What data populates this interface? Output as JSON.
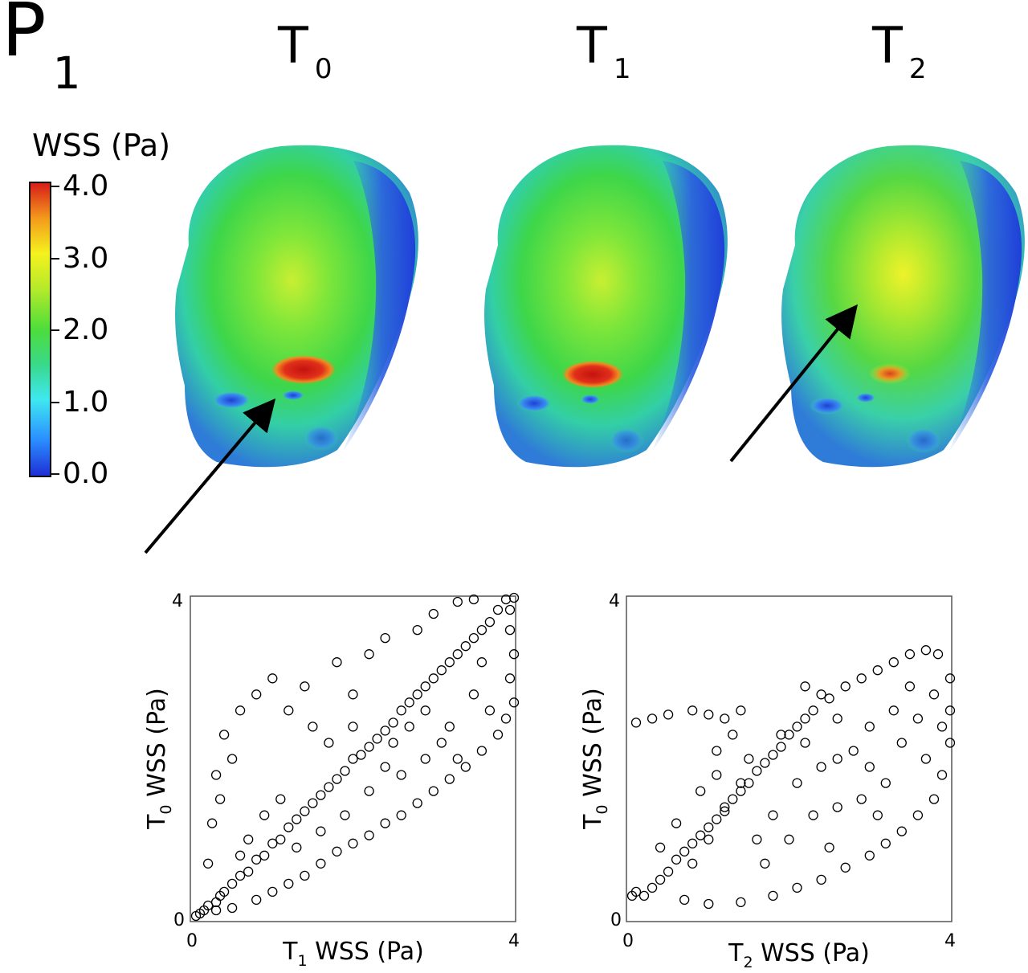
{
  "panel_label": {
    "main": "P",
    "sub": "1"
  },
  "time_labels": [
    {
      "main": "T",
      "sub": "0"
    },
    {
      "main": "T",
      "sub": "1"
    },
    {
      "main": "T",
      "sub": "2"
    }
  ],
  "colorbar": {
    "title": "WSS (Pa)",
    "ticks": [
      "4.0",
      "3.0",
      "2.0",
      "1.0",
      "0.0"
    ],
    "range": [
      0.0,
      4.0
    ]
  },
  "chart_data": [
    {
      "type": "scatter",
      "title": "",
      "xlabel": {
        "main": "T",
        "sub": "1",
        "rest": " WSS (Pa)"
      },
      "ylabel": {
        "main": "T",
        "sub": "0",
        "rest": " WSS (Pa)"
      },
      "xlim": [
        0,
        4
      ],
      "ylim": [
        0,
        4
      ],
      "xticks": [
        "0",
        "4"
      ],
      "yticks": [
        "0",
        "4"
      ],
      "marker": "open-circle",
      "grid": false,
      "series": [
        {
          "points": [
            [
              0.05,
              0.05
            ],
            [
              0.1,
              0.08
            ],
            [
              0.15,
              0.12
            ],
            [
              0.2,
              0.18
            ],
            [
              0.3,
              0.22
            ],
            [
              0.35,
              0.3
            ],
            [
              0.4,
              0.35
            ],
            [
              0.5,
              0.45
            ],
            [
              0.6,
              0.55
            ],
            [
              0.7,
              0.6
            ],
            [
              0.8,
              0.75
            ],
            [
              0.9,
              0.8
            ],
            [
              1.0,
              0.95
            ],
            [
              1.1,
              1.0
            ],
            [
              1.2,
              1.15
            ],
            [
              1.3,
              1.25
            ],
            [
              1.4,
              1.35
            ],
            [
              1.5,
              1.45
            ],
            [
              1.6,
              1.55
            ],
            [
              1.7,
              1.65
            ],
            [
              1.8,
              1.75
            ],
            [
              1.9,
              1.85
            ],
            [
              2.0,
              2.0
            ],
            [
              2.1,
              2.05
            ],
            [
              2.2,
              2.15
            ],
            [
              2.3,
              2.25
            ],
            [
              2.4,
              2.35
            ],
            [
              2.5,
              2.45
            ],
            [
              2.6,
              2.6
            ],
            [
              2.7,
              2.7
            ],
            [
              2.8,
              2.8
            ],
            [
              2.9,
              2.9
            ],
            [
              3.0,
              3.0
            ],
            [
              3.1,
              3.1
            ],
            [
              3.2,
              3.2
            ],
            [
              3.3,
              3.3
            ],
            [
              3.4,
              3.4
            ],
            [
              3.5,
              3.5
            ],
            [
              3.6,
              3.6
            ],
            [
              3.7,
              3.7
            ],
            [
              3.8,
              3.85
            ],
            [
              3.5,
              3.98
            ],
            [
              3.3,
              3.95
            ],
            [
              3.9,
              3.98
            ],
            [
              4.0,
              4.0
            ],
            [
              3.95,
              3.85
            ],
            [
              3.95,
              3.6
            ],
            [
              4.0,
              3.3
            ],
            [
              3.95,
              3.0
            ],
            [
              4.0,
              2.7
            ],
            [
              3.9,
              2.5
            ],
            [
              3.8,
              2.3
            ],
            [
              3.6,
              2.1
            ],
            [
              3.4,
              1.9
            ],
            [
              3.2,
              1.75
            ],
            [
              3.0,
              1.6
            ],
            [
              2.8,
              1.45
            ],
            [
              2.6,
              1.3
            ],
            [
              2.4,
              1.2
            ],
            [
              2.2,
              1.05
            ],
            [
              2.0,
              0.95
            ],
            [
              1.8,
              0.85
            ],
            [
              1.6,
              0.7
            ],
            [
              1.4,
              0.55
            ],
            [
              1.2,
              0.45
            ],
            [
              1.0,
              0.35
            ],
            [
              0.8,
              0.25
            ],
            [
              0.5,
              0.15
            ],
            [
              0.3,
              0.12
            ],
            [
              0.3,
              1.8
            ],
            [
              0.5,
              2.0
            ],
            [
              0.4,
              2.3
            ],
            [
              0.6,
              2.6
            ],
            [
              0.8,
              2.8
            ],
            [
              1.0,
              3.0
            ],
            [
              1.4,
              2.9
            ],
            [
              1.8,
              3.2
            ],
            [
              2.2,
              3.3
            ],
            [
              2.4,
              3.5
            ],
            [
              2.8,
              3.6
            ],
            [
              3.0,
              3.8
            ],
            [
              0.25,
              1.2
            ],
            [
              0.2,
              0.7
            ],
            [
              0.35,
              1.5
            ],
            [
              1.2,
              2.6
            ],
            [
              1.5,
              2.4
            ],
            [
              2.0,
              2.8
            ],
            [
              2.5,
              2.2
            ],
            [
              2.7,
              2.4
            ],
            [
              2.9,
              2.6
            ],
            [
              3.2,
              2.4
            ],
            [
              3.5,
              2.8
            ],
            [
              3.6,
              3.2
            ],
            [
              3.3,
              2.0
            ],
            [
              3.7,
              2.6
            ],
            [
              2.2,
              1.6
            ],
            [
              1.9,
              1.3
            ],
            [
              1.6,
              1.1
            ],
            [
              1.3,
              0.9
            ],
            [
              2.6,
              1.8
            ],
            [
              2.9,
              2.0
            ],
            [
              3.1,
              2.2
            ],
            [
              2.4,
              1.9
            ],
            [
              1.1,
              1.5
            ],
            [
              0.9,
              1.3
            ],
            [
              0.7,
              1.0
            ],
            [
              0.6,
              0.8
            ],
            [
              1.7,
              2.2
            ],
            [
              2.0,
              2.4
            ]
          ]
        }
      ]
    },
    {
      "type": "scatter",
      "title": "",
      "xlabel": {
        "main": "T",
        "sub": "2",
        "rest": " WSS (Pa)"
      },
      "ylabel": {
        "main": "T",
        "sub": "0",
        "rest": " WSS (Pa)"
      },
      "xlim": [
        0,
        4
      ],
      "ylim": [
        0,
        4
      ],
      "xticks": [
        "0",
        "4"
      ],
      "yticks": [
        "0",
        "4"
      ],
      "marker": "open-circle",
      "grid": false,
      "series": [
        {
          "points": [
            [
              0.05,
              0.3
            ],
            [
              0.1,
              0.35
            ],
            [
              0.2,
              0.3
            ],
            [
              0.3,
              0.4
            ],
            [
              0.4,
              0.5
            ],
            [
              0.5,
              0.6
            ],
            [
              0.6,
              0.75
            ],
            [
              0.7,
              0.85
            ],
            [
              0.8,
              0.95
            ],
            [
              0.9,
              1.05
            ],
            [
              1.0,
              1.15
            ],
            [
              1.1,
              1.25
            ],
            [
              1.2,
              1.35
            ],
            [
              1.3,
              1.5
            ],
            [
              1.4,
              1.6
            ],
            [
              1.5,
              1.7
            ],
            [
              1.6,
              1.85
            ],
            [
              1.7,
              1.95
            ],
            [
              1.8,
              2.05
            ],
            [
              1.9,
              2.15
            ],
            [
              2.0,
              2.3
            ],
            [
              2.1,
              2.4
            ],
            [
              2.2,
              2.5
            ],
            [
              2.3,
              2.6
            ],
            [
              2.5,
              2.75
            ],
            [
              2.7,
              2.9
            ],
            [
              2.9,
              3.0
            ],
            [
              3.1,
              3.1
            ],
            [
              3.3,
              3.2
            ],
            [
              3.5,
              3.3
            ],
            [
              3.7,
              3.35
            ],
            [
              3.85,
              3.3
            ],
            [
              4.0,
              3.0
            ],
            [
              4.0,
              2.6
            ],
            [
              4.0,
              2.2
            ],
            [
              3.9,
              1.8
            ],
            [
              3.8,
              1.5
            ],
            [
              3.6,
              1.3
            ],
            [
              3.4,
              1.1
            ],
            [
              3.2,
              0.95
            ],
            [
              3.0,
              0.8
            ],
            [
              2.7,
              0.65
            ],
            [
              2.4,
              0.5
            ],
            [
              2.1,
              0.4
            ],
            [
              1.8,
              0.3
            ],
            [
              1.4,
              0.22
            ],
            [
              1.0,
              0.2
            ],
            [
              0.7,
              0.25
            ],
            [
              0.1,
              2.45
            ],
            [
              0.3,
              2.5
            ],
            [
              0.5,
              2.55
            ],
            [
              0.8,
              2.6
            ],
            [
              1.0,
              2.55
            ],
            [
              1.2,
              2.5
            ],
            [
              1.4,
              2.6
            ],
            [
              1.3,
              2.3
            ],
            [
              1.1,
              2.1
            ],
            [
              1.5,
              2.0
            ],
            [
              1.4,
              1.7
            ],
            [
              1.2,
              1.4
            ],
            [
              1.0,
              1.0
            ],
            [
              0.8,
              0.7
            ],
            [
              2.1,
              1.7
            ],
            [
              2.4,
              1.9
            ],
            [
              2.6,
              2.0
            ],
            [
              2.8,
              2.1
            ],
            [
              3.0,
              1.9
            ],
            [
              3.2,
              1.7
            ],
            [
              3.4,
              2.2
            ],
            [
              3.6,
              2.5
            ],
            [
              3.8,
              2.8
            ],
            [
              2.3,
              1.3
            ],
            [
              2.0,
              1.0
            ],
            [
              2.6,
              1.4
            ],
            [
              2.9,
              1.5
            ],
            [
              3.3,
              2.6
            ],
            [
              3.5,
              2.9
            ],
            [
              1.8,
              1.3
            ],
            [
              1.6,
              1.0
            ],
            [
              1.9,
              2.3
            ],
            [
              2.2,
              2.2
            ],
            [
              3.0,
              2.4
            ],
            [
              3.7,
              2.0
            ],
            [
              3.9,
              2.4
            ],
            [
              1.7,
              0.7
            ],
            [
              2.5,
              0.9
            ],
            [
              3.1,
              1.3
            ],
            [
              0.4,
              0.9
            ],
            [
              0.6,
              1.2
            ],
            [
              0.9,
              1.6
            ],
            [
              1.1,
              1.8
            ],
            [
              2.6,
              2.5
            ],
            [
              2.4,
              2.8
            ],
            [
              2.2,
              2.9
            ]
          ]
        }
      ]
    }
  ]
}
